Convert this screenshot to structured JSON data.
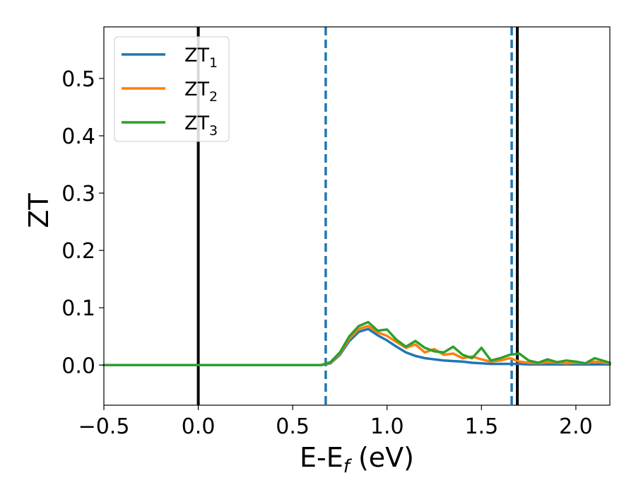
{
  "chart_data": {
    "type": "line",
    "title": "",
    "xlabel": {
      "base": "E-E",
      "sub": "f",
      "suffix": " (eV)"
    },
    "ylabel": "ZT",
    "xlim": [
      -0.5,
      2.18
    ],
    "ylim": [
      -0.07,
      0.59
    ],
    "xticks": [
      -0.5,
      0.0,
      0.5,
      1.0,
      1.5,
      2.0
    ],
    "xtick_labels": [
      "−0.5",
      "0.0",
      "0.5",
      "1.0",
      "1.5",
      "2.0"
    ],
    "yticks": [
      0.0,
      0.1,
      0.2,
      0.3,
      0.4,
      0.5
    ],
    "ytick_labels": [
      "0.0",
      "0.1",
      "0.2",
      "0.3",
      "0.4",
      "0.5"
    ],
    "grid": false,
    "legend_position": "top-left",
    "series": [
      {
        "name": "ZT",
        "subscript": "1",
        "color": "#1f77b4",
        "x": [
          -0.5,
          0.0,
          0.5,
          0.6,
          0.65,
          0.7,
          0.75,
          0.8,
          0.85,
          0.9,
          0.95,
          1.0,
          1.05,
          1.1,
          1.15,
          1.2,
          1.25,
          1.3,
          1.35,
          1.4,
          1.45,
          1.5,
          1.55,
          1.6,
          1.65,
          1.7,
          1.75,
          1.8,
          1.85,
          1.9,
          1.95,
          2.0,
          2.05,
          2.1,
          2.18
        ],
        "y": [
          0.0,
          0.0,
          0.0,
          0.0,
          0.0,
          0.003,
          0.018,
          0.042,
          0.058,
          0.063,
          0.052,
          0.043,
          0.032,
          0.022,
          0.016,
          0.012,
          0.01,
          0.008,
          0.007,
          0.006,
          0.004,
          0.003,
          0.002,
          0.002,
          0.002,
          0.002,
          0.001,
          0.001,
          0.001,
          0.001,
          0.001,
          0.001,
          0.001,
          0.001,
          0.001
        ]
      },
      {
        "name": "ZT",
        "subscript": "2",
        "color": "#ff7f0e",
        "x": [
          -0.5,
          0.0,
          0.5,
          0.6,
          0.65,
          0.7,
          0.75,
          0.8,
          0.85,
          0.9,
          0.95,
          1.0,
          1.05,
          1.1,
          1.15,
          1.2,
          1.25,
          1.3,
          1.35,
          1.4,
          1.45,
          1.5,
          1.55,
          1.6,
          1.65,
          1.7,
          1.75,
          1.8,
          1.85,
          1.9,
          1.95,
          2.0,
          2.05,
          2.1,
          2.18
        ],
        "y": [
          0.0,
          0.0,
          0.0,
          0.0,
          0.0,
          0.004,
          0.02,
          0.046,
          0.063,
          0.068,
          0.057,
          0.051,
          0.04,
          0.03,
          0.036,
          0.022,
          0.028,
          0.018,
          0.02,
          0.012,
          0.015,
          0.01,
          0.006,
          0.008,
          0.012,
          0.006,
          0.004,
          0.003,
          0.005,
          0.004,
          0.003,
          0.004,
          0.003,
          0.006,
          0.003
        ]
      },
      {
        "name": "ZT",
        "subscript": "3",
        "color": "#2ca02c",
        "x": [
          -0.5,
          0.0,
          0.5,
          0.6,
          0.65,
          0.7,
          0.75,
          0.8,
          0.85,
          0.9,
          0.95,
          1.0,
          1.05,
          1.1,
          1.15,
          1.2,
          1.25,
          1.3,
          1.35,
          1.4,
          1.45,
          1.5,
          1.55,
          1.6,
          1.65,
          1.7,
          1.75,
          1.8,
          1.85,
          1.9,
          1.95,
          2.0,
          2.05,
          2.1,
          2.18
        ],
        "y": [
          0.0,
          0.0,
          0.0,
          0.0,
          0.0,
          0.005,
          0.022,
          0.05,
          0.068,
          0.075,
          0.06,
          0.062,
          0.044,
          0.032,
          0.042,
          0.03,
          0.024,
          0.022,
          0.032,
          0.018,
          0.012,
          0.03,
          0.008,
          0.012,
          0.018,
          0.02,
          0.008,
          0.004,
          0.01,
          0.005,
          0.008,
          0.006,
          0.003,
          0.012,
          0.004
        ]
      }
    ],
    "vlines": [
      {
        "x": 0.0,
        "style": "solid",
        "color": "#000000"
      },
      {
        "x": 1.69,
        "style": "solid",
        "color": "#000000"
      },
      {
        "x": 0.675,
        "style": "dashed",
        "color": "#1f77b4"
      },
      {
        "x": 1.66,
        "style": "dashed",
        "color": "#1f77b4"
      }
    ]
  }
}
